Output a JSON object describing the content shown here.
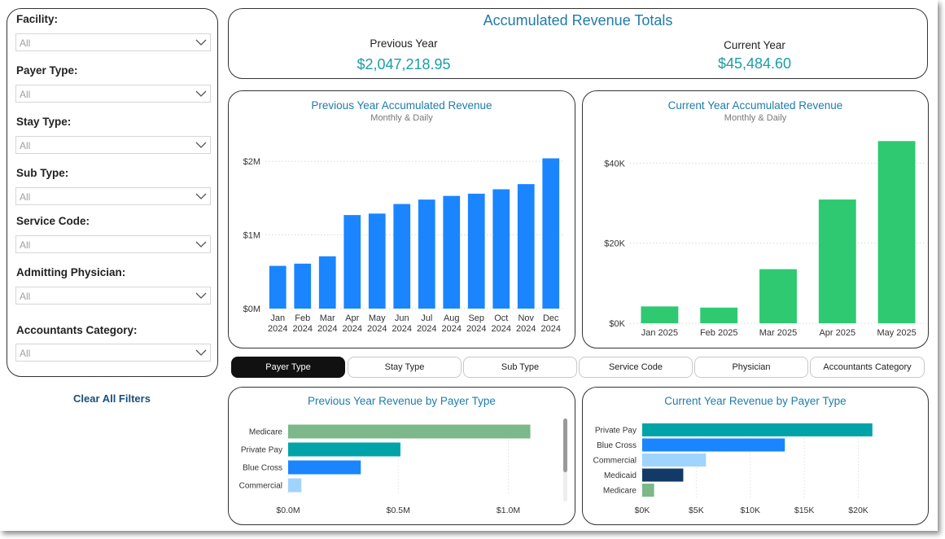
{
  "filters": {
    "clear_label": "Clear All Filters",
    "items": [
      {
        "label": "Facility:",
        "value": "All"
      },
      {
        "label": "Payer Type:",
        "value": "All"
      },
      {
        "label": "Stay Type:",
        "value": "All"
      },
      {
        "label": "Sub Type:",
        "value": "All"
      },
      {
        "label": "Service Code:",
        "value": "All"
      },
      {
        "label": "Admitting Physician:",
        "value": "All"
      },
      {
        "label": "Accountants Category:",
        "value": "All"
      }
    ]
  },
  "totals": {
    "title": "Accumulated Revenue Totals",
    "previous_label": "Previous Year",
    "previous_value": "$2,047,218.95",
    "current_label": "Current Year",
    "current_value": "$45,484.60"
  },
  "tabs": [
    "Payer Type",
    "Stay Type",
    "Sub Type",
    "Service Code",
    "Physician",
    "Accountants Category"
  ],
  "active_tab": "Payer Type",
  "colors": {
    "blue_bar": "#1a85ff",
    "green_bar": "#2ec971",
    "title": "#1f7bab",
    "teal": "#1a9ea5"
  },
  "chart_data": [
    {
      "id": "py_monthly",
      "type": "bar",
      "title": "Previous Year Accumulated Revenue",
      "subtitle": "Monthly & Daily",
      "categories": [
        "Jan",
        "Feb",
        "Mar",
        "Apr",
        "May",
        "Jun",
        "Jul",
        "Aug",
        "Sep",
        "Oct",
        "Nov",
        "Dec"
      ],
      "category_years": [
        "2024",
        "2024",
        "2024",
        "2024",
        "2024",
        "2024",
        "2024",
        "2024",
        "2024",
        "2024",
        "2024",
        "2024"
      ],
      "values": [
        580000,
        610000,
        710000,
        1270000,
        1290000,
        1420000,
        1480000,
        1530000,
        1560000,
        1620000,
        1690000,
        2040000
      ],
      "ylim": [
        0,
        2200000
      ],
      "yticks": [
        0,
        1000000,
        2000000
      ],
      "ytick_labels": [
        "$0M",
        "$1M",
        "$2M"
      ],
      "color": "#1a85ff"
    },
    {
      "id": "cy_monthly",
      "type": "bar",
      "title": "Current Year Accumulated Revenue",
      "subtitle": "Monthly & Daily",
      "categories": [
        "Jan 2025",
        "Feb 2025",
        "Mar 2025",
        "Apr 2025",
        "May 2025"
      ],
      "values": [
        4200,
        3900,
        13500,
        30900,
        45500
      ],
      "ylim": [
        0,
        48000
      ],
      "yticks": [
        0,
        20000,
        40000
      ],
      "ytick_labels": [
        "$0K",
        "$20K",
        "$40K"
      ],
      "color": "#2ec971"
    },
    {
      "id": "py_payer",
      "type": "bar",
      "orientation": "horizontal",
      "title": "Previous Year Revenue by Payer Type",
      "categories": [
        "Medicare",
        "Private Pay",
        "Blue Cross",
        "Commercial"
      ],
      "values": [
        1100000,
        510000,
        330000,
        60000
      ],
      "colors": [
        "#7cb88a",
        "#00a4a8",
        "#1a85ff",
        "#9fd4ff"
      ],
      "xlim": [
        0,
        1220000
      ],
      "xticks": [
        0,
        500000,
        1000000
      ],
      "xtick_labels": [
        "$0.0M",
        "$0.5M",
        "$1.0M"
      ]
    },
    {
      "id": "cy_payer",
      "type": "bar",
      "orientation": "horizontal",
      "title": "Current Year Revenue by Payer Type",
      "categories": [
        "Private Pay",
        "Blue Cross",
        "Commercial",
        "Medicaid",
        "Medicare"
      ],
      "values": [
        21300,
        13200,
        5900,
        3800,
        1100
      ],
      "colors": [
        "#00a4a8",
        "#1a85ff",
        "#9fd4ff",
        "#123a66",
        "#7cb88a"
      ],
      "xlim": [
        0,
        23500
      ],
      "xticks": [
        0,
        5000,
        10000,
        15000,
        20000
      ],
      "xtick_labels": [
        "$0K",
        "$5K",
        "$10K",
        "$15K",
        "$20K"
      ]
    }
  ]
}
